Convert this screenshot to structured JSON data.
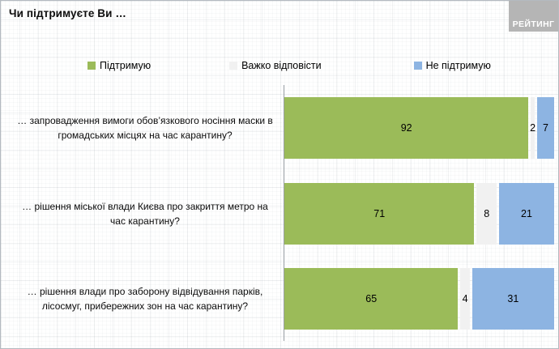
{
  "title": "Чи підтримуєте Ви …",
  "logo_text": "РЕЙТИНГ",
  "chart_data": {
    "type": "bar",
    "orientation": "horizontal_stacked",
    "title": "Чи підтримуєте Ви …",
    "unit": "percent",
    "value_labels": true,
    "legend_position": "top",
    "xlim": [
      0,
      100
    ],
    "grid": false,
    "categories": [
      "… запровадження вимоги обов’язкового носіння маски в громадських місцях на час карантину?",
      "… рішення міської влади Києва про закриття метро на час карантину?",
      "… рішення влади про заборону відвідування парків, лісосмуг, прибережних зон на час карантину?"
    ],
    "series": [
      {
        "name": "Підтримую",
        "color": "#9bbb59",
        "values": [
          92,
          71,
          65
        ]
      },
      {
        "name": "Важко відповісти",
        "color": "#f1f1f1",
        "values": [
          2,
          8,
          4
        ]
      },
      {
        "name": "Не підтримую",
        "color": "#8db4e2",
        "values": [
          7,
          21,
          31
        ]
      }
    ]
  }
}
